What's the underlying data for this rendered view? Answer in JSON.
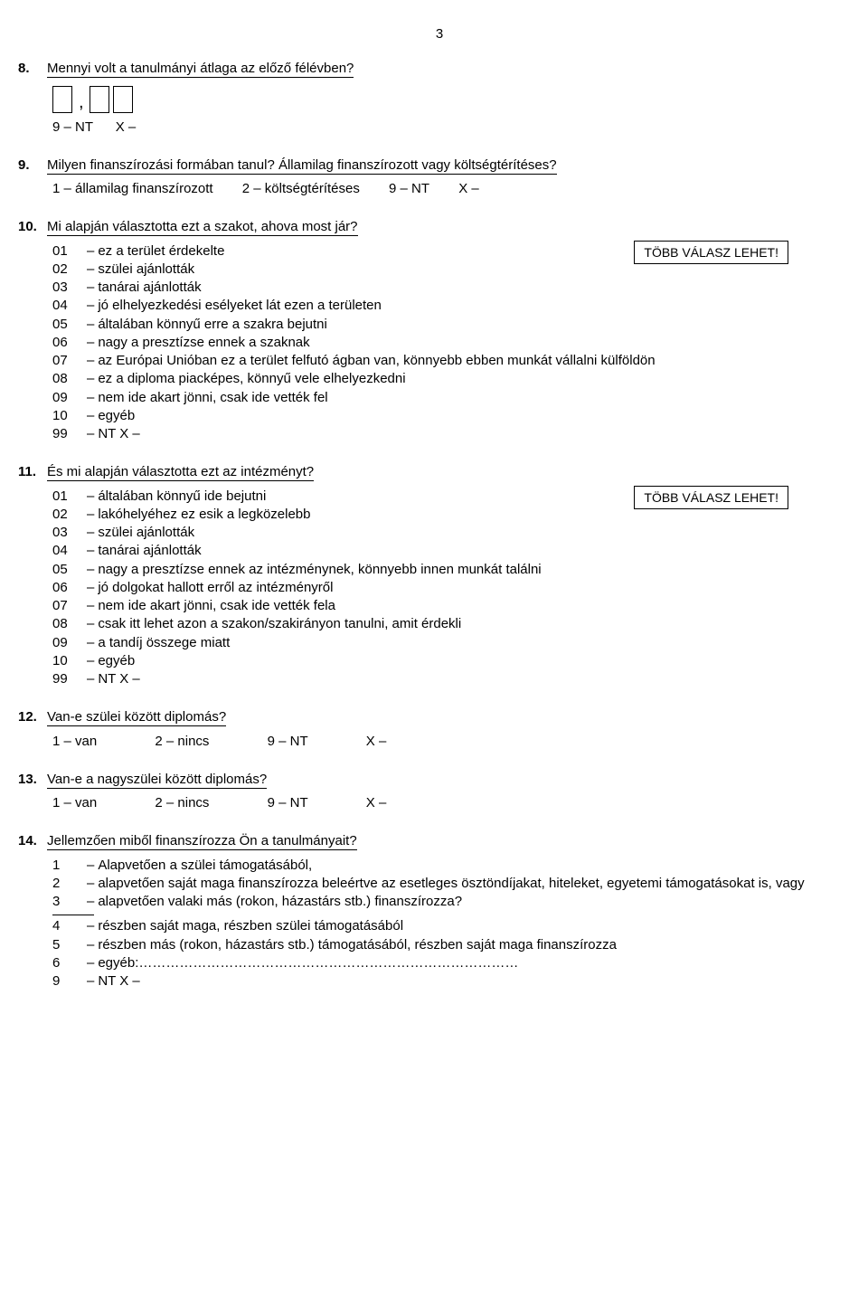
{
  "page_number": "3",
  "q8": {
    "num": "8.",
    "title": "Mennyi volt a tanulmányi átlaga az előző félévben?",
    "inline": "9 – NT      X –"
  },
  "q9": {
    "num": "9.",
    "title": "Milyen finanszírozási formában tanul? Államilag finanszírozott vagy költségtérítéses?",
    "opts": [
      "1 – államilag finanszírozott",
      "2 – költségtérítéses",
      "9 – NT",
      "X –"
    ]
  },
  "q10": {
    "num": "10.",
    "title": "Mi alapján választotta ezt a szakot, ahova most jár?",
    "note": "TÖBB VÁLASZ LEHET!",
    "options": [
      {
        "c": "01",
        "l": "ez a terület érdekelte"
      },
      {
        "c": "02",
        "l": "szülei ajánlották"
      },
      {
        "c": "03",
        "l": "tanárai ajánlották"
      },
      {
        "c": "04",
        "l": "jó elhelyezkedési esélyeket lát ezen a területen"
      },
      {
        "c": "05",
        "l": "általában könnyű erre a szakra bejutni"
      },
      {
        "c": "06",
        "l": "nagy a presztízse ennek a szaknak"
      },
      {
        "c": "07",
        "l": "az Európai Unióban ez a terület felfutó ágban van, könnyebb ebben munkát vállalni külföldön"
      },
      {
        "c": "08",
        "l": "ez a diploma piacképes, könnyű vele elhelyezkedni"
      },
      {
        "c": "09",
        "l": "nem ide akart jönni, csak ide vették fel"
      },
      {
        "c": "10",
        "l": "egyéb"
      },
      {
        "c": "99",
        "l": "NT            X –"
      }
    ]
  },
  "q11": {
    "num": "11.",
    "title": "És mi alapján választotta ezt az intézményt?",
    "note": "TÖBB VÁLASZ LEHET!",
    "options": [
      {
        "c": "01",
        "l": "általában könnyű ide bejutni"
      },
      {
        "c": "02",
        "l": "lakóhelyéhez ez esik a legközelebb"
      },
      {
        "c": "03",
        "l": "szülei ajánlották"
      },
      {
        "c": "04",
        "l": "tanárai ajánlották"
      },
      {
        "c": "05",
        "l": "nagy a presztízse ennek az intézménynek, könnyebb innen munkát találni"
      },
      {
        "c": "06",
        "l": "jó dolgokat hallott erről az intézményről"
      },
      {
        "c": "07",
        "l": "nem ide akart jönni, csak ide vették fela"
      },
      {
        "c": "08",
        "l": "csak itt lehet azon a szakon/szakirányon tanulni, amit érdekli"
      },
      {
        "c": "09",
        "l": "a tandíj összege miatt"
      },
      {
        "c": "10",
        "l": "egyéb"
      },
      {
        "c": "99",
        "l": "NT            X –"
      }
    ]
  },
  "q12": {
    "num": "12.",
    "title": "Van-e szülei között diplomás?",
    "opts": [
      "1 – van",
      "2 – nincs",
      "9 – NT",
      "X –"
    ]
  },
  "q13": {
    "num": "13.",
    "title": "Van-e  a nagyszülei között diplomás?",
    "opts": [
      "1 – van",
      "2 – nincs",
      "9 – NT",
      "X –"
    ]
  },
  "q14": {
    "num": "14.",
    "title": "Jellemzően miből finanszírozza Ön a tanulmányait?",
    "group1": [
      {
        "c": "1",
        "l": "Alapvetően a szülei támogatásából,"
      },
      {
        "c": "2",
        "l": "alapvetően saját maga finanszírozza beleértve az esetleges ösztöndíjakat, hiteleket, egyetemi támogatásokat is, vagy"
      },
      {
        "c": "3",
        "l": "alapvetően valaki más (rokon, házastárs stb.) finanszírozza?"
      }
    ],
    "group2": [
      {
        "c": "4",
        "l": "részben saját maga, részben szülei támogatásából"
      },
      {
        "c": "5",
        "l": "részben más (rokon, házastárs stb.) támogatásából, részben saját maga finanszírozza"
      },
      {
        "c": "6",
        "l": "egyéb:…………………………………………………………………………"
      },
      {
        "c": "9",
        "l": "NT            X –"
      }
    ]
  }
}
